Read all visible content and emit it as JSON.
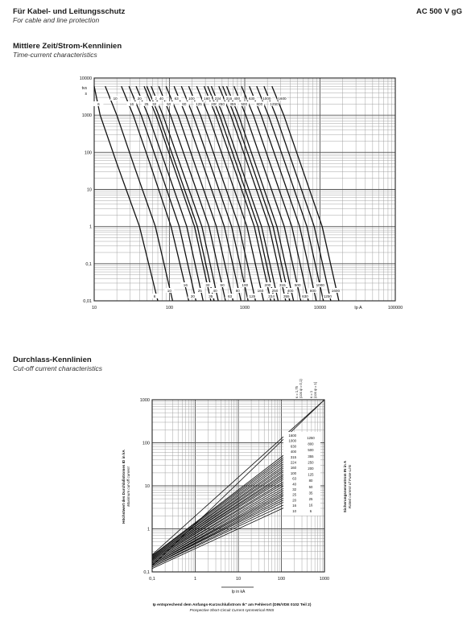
{
  "header": {
    "title": "Für Kabel- und Leitungsschutz",
    "subtitle": "For cable and line protection",
    "product": "AC 500 V gG"
  },
  "section1": {
    "title": "Mittlere Zeit/Strom-Kennlinien",
    "subtitle": "Time-current characteristics"
  },
  "section2": {
    "title": "Durchlass-Kennlinien",
    "subtitle": "Cut-off current characteristics"
  },
  "chart_data": [
    {
      "type": "line",
      "title": "Mittlere Zeit/Strom-Kennlinien",
      "xscale": "log",
      "yscale": "log",
      "xlim": [
        10,
        100000
      ],
      "ylim": [
        0.01,
        10000
      ],
      "x_ticks": [
        "10",
        "100",
        "1000",
        "10000",
        "100000"
      ],
      "y_ticks": [
        "0,01",
        "0,1",
        "1",
        "10",
        "100",
        "1000",
        "10000"
      ],
      "ylabel": "tvs\ns",
      "xlabel": "Ip  A",
      "grid": true,
      "top_rating_labels": [
        "6",
        "10",
        "16",
        "20",
        "25",
        "35",
        "32",
        "40",
        "50",
        "63",
        "80",
        "100",
        "125",
        "160",
        "200",
        "224",
        "250",
        "315",
        "355",
        "400",
        "500",
        "630",
        "800",
        "1000",
        "1250",
        "1600"
      ],
      "bottom_rating_labels": [
        "6",
        "10",
        "16",
        "20",
        "25",
        "32",
        "35",
        "40",
        "50",
        "63",
        "80",
        "100",
        "125",
        "160",
        "200",
        "224",
        "250",
        "315",
        "355",
        "400",
        "500",
        "630",
        "800",
        "1000",
        "1250",
        "1600"
      ],
      "series": [
        {
          "name": "6",
          "x": [
            8.5,
            12,
            20,
            40,
            70
          ],
          "y": [
            6000,
            1000,
            50,
            1,
            0.01
          ]
        },
        {
          "name": "10",
          "x": [
            14,
            20,
            33,
            65,
            110
          ],
          "y": [
            6000,
            1000,
            50,
            1,
            0.01
          ]
        },
        {
          "name": "16",
          "x": [
            23,
            33,
            55,
            105,
            180
          ],
          "y": [
            6000,
            1000,
            50,
            1,
            0.01
          ]
        },
        {
          "name": "20",
          "x": [
            29,
            42,
            70,
            135,
            225
          ],
          "y": [
            6000,
            1000,
            50,
            1,
            0.01
          ]
        },
        {
          "name": "25",
          "x": [
            36,
            52,
            87,
            170,
            280
          ],
          "y": [
            6000,
            1000,
            50,
            1,
            0.01
          ]
        },
        {
          "name": "32",
          "x": [
            46,
            66,
            110,
            215,
            355
          ],
          "y": [
            6000,
            1000,
            50,
            1,
            0.01
          ]
        },
        {
          "name": "35",
          "x": [
            50,
            72,
            120,
            235,
            390
          ],
          "y": [
            6000,
            1000,
            50,
            1,
            0.01
          ]
        },
        {
          "name": "40",
          "x": [
            57,
            82,
            137,
            270,
            445
          ],
          "y": [
            6000,
            1000,
            50,
            1,
            0.01
          ]
        },
        {
          "name": "50",
          "x": [
            72,
            103,
            172,
            335,
            555
          ],
          "y": [
            6000,
            1000,
            50,
            1,
            0.01
          ]
        },
        {
          "name": "63",
          "x": [
            90,
            130,
            215,
            420,
            700
          ],
          "y": [
            6000,
            1000,
            50,
            1,
            0.01
          ]
        },
        {
          "name": "80",
          "x": [
            115,
            165,
            275,
            535,
            890
          ],
          "y": [
            6000,
            1000,
            50,
            1,
            0.01
          ]
        },
        {
          "name": "100",
          "x": [
            144,
            206,
            345,
            670,
            1110
          ],
          "y": [
            6000,
            1000,
            50,
            1,
            0.01
          ]
        },
        {
          "name": "125",
          "x": [
            180,
            258,
            430,
            840,
            1390
          ],
          "y": [
            6000,
            1000,
            50,
            1,
            0.01
          ]
        },
        {
          "name": "160",
          "x": [
            230,
            330,
            550,
            1070,
            1780
          ],
          "y": [
            6000,
            1000,
            50,
            1,
            0.01
          ]
        },
        {
          "name": "200",
          "x": [
            288,
            412,
            690,
            1340,
            2220
          ],
          "y": [
            6000,
            1000,
            50,
            1,
            0.01
          ]
        },
        {
          "name": "224",
          "x": [
            322,
            462,
            770,
            1500,
            2490
          ],
          "y": [
            6000,
            1000,
            50,
            1,
            0.01
          ]
        },
        {
          "name": "250",
          "x": [
            360,
            515,
            860,
            1675,
            2780
          ],
          "y": [
            6000,
            1000,
            50,
            1,
            0.01
          ]
        },
        {
          "name": "315",
          "x": [
            453,
            650,
            1085,
            2110,
            3500
          ],
          "y": [
            6000,
            1000,
            50,
            1,
            0.01
          ]
        },
        {
          "name": "355",
          "x": [
            510,
            730,
            1220,
            2380,
            3950
          ],
          "y": [
            6000,
            1000,
            50,
            1,
            0.01
          ]
        },
        {
          "name": "400",
          "x": [
            575,
            825,
            1375,
            2680,
            4450
          ],
          "y": [
            6000,
            1000,
            50,
            1,
            0.01
          ]
        },
        {
          "name": "500",
          "x": [
            720,
            1030,
            1720,
            3350,
            5560
          ],
          "y": [
            6000,
            1000,
            50,
            1,
            0.01
          ]
        },
        {
          "name": "630",
          "x": [
            906,
            1300,
            2165,
            4220,
            7000
          ],
          "y": [
            6000,
            1000,
            50,
            1,
            0.01
          ]
        },
        {
          "name": "800",
          "x": [
            1150,
            1650,
            2750,
            5360,
            8900
          ],
          "y": [
            6000,
            1000,
            50,
            1,
            0.01
          ]
        },
        {
          "name": "1000",
          "x": [
            1440,
            2060,
            3440,
            6700,
            11100
          ],
          "y": [
            6000,
            1000,
            50,
            1,
            0.01
          ]
        },
        {
          "name": "1250",
          "x": [
            1800,
            2580,
            4300,
            8380,
            13900
          ],
          "y": [
            6000,
            1000,
            50,
            1,
            0.01
          ]
        },
        {
          "name": "1600",
          "x": [
            2300,
            3300,
            5500,
            10700,
            17800
          ],
          "y": [
            6000,
            1000,
            50,
            1,
            0.01
          ]
        }
      ]
    },
    {
      "type": "line",
      "title": "Durchlass-Kennlinien",
      "xscale": "log",
      "yscale": "log",
      "xlim": [
        0.1,
        1000
      ],
      "ylim": [
        0.1,
        1000
      ],
      "x_ticks": [
        "0,1",
        "1",
        "10",
        "100",
        "1000"
      ],
      "y_ticks": [
        "0,1",
        "1",
        "10",
        "100",
        "1000"
      ],
      "xlabel": "Ip in kA",
      "ylabel": "Höchstwert des Durchlaßstromes ID in kA",
      "ylabel_en": "Maximum cut-off current",
      "right_label": "Sicherungsnennstrom IN in A",
      "right_label_en": "Rated current of Fuse-Link",
      "footnote": "Ip entsprechend dem Anfangs-Kurzschlußstrom Ik\" am Fehlerort (DIN/VDE 0102 Teil 2)",
      "footnote_en": "Prospective Short-Circuit Current symmetrical RMS",
      "peak_labels": [
        "κ = 1,75\n(cos φ = 0,1)",
        "κ = 1\n(cos φ = 1)"
      ],
      "grid": true,
      "ratings_left": [
        "1600",
        "1000",
        "630",
        "400",
        "315",
        "224",
        "160",
        "100",
        "63",
        "40",
        "32",
        "25",
        "20",
        "16",
        "10"
      ],
      "ratings_right": [
        "1250",
        "800",
        "500",
        "355",
        "250",
        "200",
        "125",
        "80",
        "50",
        "35",
        "25",
        "16",
        "6"
      ],
      "series": [
        {
          "name": "κ = 1,75",
          "x": [
            0.1,
            1000
          ],
          "y": [
            0.25,
            2500
          ]
        },
        {
          "name": "κ = 1",
          "x": [
            0.1,
            1000
          ],
          "y": [
            0.14,
            1400
          ]
        },
        {
          "name": "1600",
          "x": [
            0.1,
            400
          ],
          "y": [
            0.24,
            135
          ]
        },
        {
          "name": "1250",
          "x": [
            0.1,
            400
          ],
          "y": [
            0.24,
            118
          ]
        },
        {
          "name": "1000",
          "x": [
            0.1,
            400
          ],
          "y": [
            0.23,
            105
          ]
        },
        {
          "name": "800",
          "x": [
            0.1,
            400
          ],
          "y": [
            0.22,
            92
          ]
        },
        {
          "name": "630",
          "x": [
            0.1,
            400
          ],
          "y": [
            0.22,
            80
          ]
        },
        {
          "name": "500",
          "x": [
            0.1,
            400
          ],
          "y": [
            0.21,
            70
          ]
        },
        {
          "name": "400",
          "x": [
            0.1,
            400
          ],
          "y": [
            0.21,
            62
          ]
        },
        {
          "name": "355",
          "x": [
            0.1,
            400
          ],
          "y": [
            0.2,
            55
          ]
        },
        {
          "name": "315",
          "x": [
            0.1,
            400
          ],
          "y": [
            0.2,
            49
          ]
        },
        {
          "name": "250",
          "x": [
            0.1,
            400
          ],
          "y": [
            0.19,
            43
          ]
        },
        {
          "name": "224",
          "x": [
            0.1,
            400
          ],
          "y": [
            0.19,
            39
          ]
        },
        {
          "name": "200",
          "x": [
            0.1,
            400
          ],
          "y": [
            0.18,
            35
          ]
        },
        {
          "name": "160",
          "x": [
            0.1,
            400
          ],
          "y": [
            0.18,
            31
          ]
        },
        {
          "name": "125",
          "x": [
            0.1,
            400
          ],
          "y": [
            0.17,
            27
          ]
        },
        {
          "name": "100",
          "x": [
            0.1,
            400
          ],
          "y": [
            0.17,
            24
          ]
        },
        {
          "name": "80",
          "x": [
            0.1,
            400
          ],
          "y": [
            0.16,
            21
          ]
        },
        {
          "name": "63",
          "x": [
            0.1,
            400
          ],
          "y": [
            0.16,
            18
          ]
        },
        {
          "name": "50",
          "x": [
            0.1,
            400
          ],
          "y": [
            0.15,
            16
          ]
        },
        {
          "name": "40",
          "x": [
            0.1,
            400
          ],
          "y": [
            0.15,
            14
          ]
        },
        {
          "name": "35",
          "x": [
            0.1,
            400
          ],
          "y": [
            0.15,
            12.5
          ]
        },
        {
          "name": "32",
          "x": [
            0.1,
            400
          ],
          "y": [
            0.14,
            11.5
          ]
        },
        {
          "name": "25",
          "x": [
            0.1,
            400
          ],
          "y": [
            0.14,
            10
          ]
        },
        {
          "name": "20",
          "x": [
            0.1,
            400
          ],
          "y": [
            0.14,
            8.8
          ]
        },
        {
          "name": "16",
          "x": [
            0.1,
            400
          ],
          "y": [
            0.13,
            7.8
          ]
        },
        {
          "name": "10",
          "x": [
            0.1,
            400
          ],
          "y": [
            0.13,
            6.5
          ]
        },
        {
          "name": "6",
          "x": [
            0.1,
            400
          ],
          "y": [
            0.12,
            5.5
          ]
        }
      ]
    }
  ]
}
